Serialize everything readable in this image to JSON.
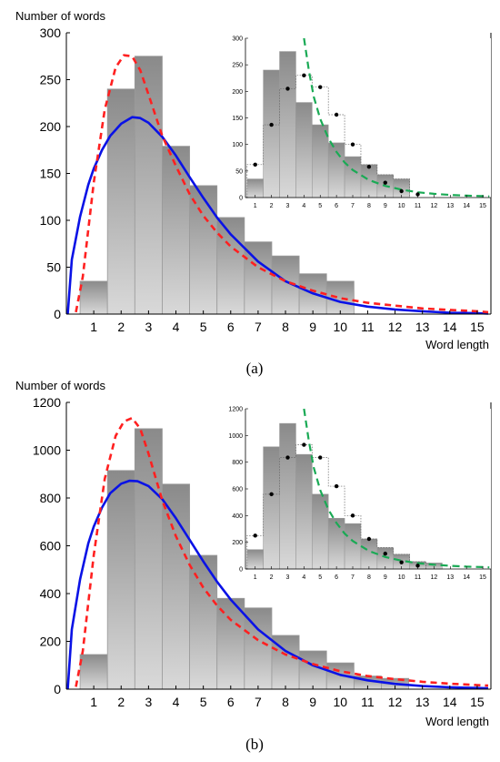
{
  "colors": {
    "bar_top": "#8a8a8a",
    "bar_bottom": "#d9d9d9",
    "bar_edge": "#9a9a9a",
    "solid_curve": "#0a12e6",
    "dashed_curve": "#ff2020",
    "inset_curve": "#1aaa55",
    "points": "#000000"
  },
  "chart_data": [
    {
      "id": "a",
      "type": "bar",
      "caption": "(a)",
      "ylabel": "Number of words",
      "xlabel": "Word length",
      "xlim": [
        0,
        15.5
      ],
      "ylim": [
        0,
        300
      ],
      "yticks": [
        0,
        50,
        100,
        150,
        200,
        250,
        300
      ],
      "xticks": [
        1,
        2,
        3,
        4,
        5,
        6,
        7,
        8,
        9,
        10,
        11,
        12,
        13,
        14,
        15
      ],
      "categories": [
        1,
        2,
        3,
        4,
        5,
        6,
        7,
        8,
        9,
        10,
        11,
        12,
        13,
        14,
        15
      ],
      "values": [
        35,
        240,
        275,
        179,
        137,
        103,
        77,
        62,
        43,
        35,
        0,
        0,
        0,
        0,
        0
      ],
      "curves": [
        {
          "style": "solid",
          "x": [
            0.05,
            0.2,
            0.5,
            0.8,
            1.0,
            1.3,
            1.6,
            2.0,
            2.4,
            2.7,
            3.0,
            3.5,
            4.0,
            4.5,
            5.0,
            5.5,
            6.0,
            7.0,
            8.0,
            9.0,
            10.0,
            11.0,
            12.0,
            13.0,
            14.0,
            15.0,
            15.4
          ],
          "y": [
            0,
            58,
            104,
            138,
            155,
            175,
            190,
            203,
            210,
            209,
            204,
            189,
            169,
            146,
            124,
            103,
            85,
            56,
            35,
            22,
            13,
            8,
            5,
            3,
            1.5,
            1,
            0.5
          ]
        },
        {
          "style": "dashed",
          "x": [
            0.35,
            0.6,
            1.0,
            1.4,
            1.8,
            2.1,
            2.4,
            2.7,
            3.0,
            3.5,
            4.0,
            4.5,
            5.0,
            5.5,
            6.0,
            7.0,
            8.0,
            9.0,
            10.0,
            11.0,
            12.0,
            13.0,
            14.0,
            15.0,
            15.4
          ],
          "y": [
            2,
            40,
            140,
            218,
            263,
            276,
            275,
            260,
            234,
            190,
            158,
            128,
            105,
            87,
            72,
            50,
            35,
            25,
            17,
            12,
            9,
            6,
            4.5,
            3,
            2
          ]
        }
      ],
      "inset": {
        "xlim": [
          0.4,
          15.5
        ],
        "ylim": [
          0,
          300
        ],
        "yticks": [
          0,
          50,
          100,
          150,
          200,
          250,
          300
        ],
        "xticks": [
          1,
          2,
          3,
          4,
          5,
          6,
          7,
          8,
          9,
          10,
          11,
          12,
          13,
          14,
          15
        ],
        "values": [
          35,
          240,
          275,
          179,
          137,
          103,
          77,
          62,
          43,
          35,
          0,
          0,
          0,
          0,
          0
        ],
        "outline": [
          62,
          137,
          205,
          230,
          208,
          156,
          100,
          62,
          43,
          35
        ],
        "points": [
          [
            1,
            62
          ],
          [
            2,
            137
          ],
          [
            3,
            205
          ],
          [
            4,
            230
          ],
          [
            5,
            208
          ],
          [
            6,
            156
          ],
          [
            7,
            100
          ],
          [
            8,
            58
          ],
          [
            9,
            28
          ],
          [
            10,
            12
          ],
          [
            11,
            6
          ]
        ],
        "curve": {
          "style": "dashed",
          "x": [
            4.0,
            4.3,
            4.6,
            5.0,
            5.5,
            6.0,
            6.5,
            7.0,
            8.0,
            9.0,
            10.0,
            11.0,
            12.0,
            13.0,
            14.0,
            15.0,
            15.4
          ],
          "y": [
            300,
            240,
            190,
            148,
            112,
            86,
            66,
            52,
            33,
            22,
            15,
            10,
            7,
            5,
            3.6,
            2.7,
            2.3
          ]
        }
      }
    },
    {
      "id": "b",
      "type": "bar",
      "caption": "(b)",
      "ylabel": "Number of words",
      "xlabel": "Word length",
      "xlim": [
        0,
        15.5
      ],
      "ylim": [
        0,
        1200
      ],
      "yticks": [
        0,
        200,
        400,
        600,
        800,
        1000,
        1200
      ],
      "xticks": [
        1,
        2,
        3,
        4,
        5,
        6,
        7,
        8,
        9,
        10,
        11,
        12,
        13,
        14,
        15
      ],
      "categories": [
        1,
        2,
        3,
        4,
        5,
        6,
        7,
        8,
        9,
        10,
        11,
        12,
        13,
        14,
        15
      ],
      "values": [
        145,
        915,
        1090,
        858,
        560,
        380,
        340,
        225,
        160,
        110,
        55,
        45,
        0,
        0,
        0
      ],
      "curves": [
        {
          "style": "solid",
          "x": [
            0.05,
            0.2,
            0.5,
            0.8,
            1.0,
            1.3,
            1.6,
            2.0,
            2.3,
            2.6,
            3.0,
            3.5,
            4.0,
            4.5,
            5.0,
            5.5,
            6.0,
            7.0,
            8.0,
            9.0,
            10.0,
            11.0,
            12.0,
            13.0,
            14.0,
            15.0,
            15.4
          ],
          "y": [
            0,
            250,
            460,
            610,
            680,
            760,
            820,
            860,
            872,
            870,
            850,
            795,
            715,
            625,
            535,
            450,
            375,
            250,
            160,
            100,
            60,
            37,
            22,
            13,
            8,
            5,
            4
          ]
        },
        {
          "style": "dashed",
          "x": [
            0.35,
            0.6,
            1.0,
            1.4,
            1.8,
            2.1,
            2.4,
            2.7,
            3.0,
            3.5,
            4.0,
            4.5,
            5.0,
            5.5,
            6.0,
            7.0,
            8.0,
            9.0,
            10.0,
            11.0,
            12.0,
            13.0,
            14.0,
            15.0,
            15.4
          ],
          "y": [
            10,
            160,
            560,
            880,
            1060,
            1120,
            1135,
            1090,
            985,
            790,
            640,
            520,
            425,
            350,
            290,
            205,
            145,
            105,
            75,
            55,
            42,
            31,
            23,
            17,
            15
          ]
        }
      ],
      "inset": {
        "xlim": [
          0.4,
          15.5
        ],
        "ylim": [
          0,
          1200
        ],
        "yticks": [
          0,
          200,
          400,
          600,
          800,
          1000,
          1200
        ],
        "xticks": [
          1,
          2,
          3,
          4,
          5,
          6,
          7,
          8,
          9,
          10,
          11,
          12,
          13,
          14,
          15
        ],
        "values": [
          145,
          915,
          1090,
          858,
          560,
          380,
          340,
          225,
          160,
          110,
          55,
          45,
          0,
          0,
          0
        ],
        "outline": [
          250,
          560,
          835,
          930,
          835,
          620,
          400,
          225,
          160,
          110,
          55
        ],
        "points": [
          [
            1,
            250
          ],
          [
            2,
            560
          ],
          [
            3,
            835
          ],
          [
            4,
            930
          ],
          [
            5,
            835
          ],
          [
            6,
            620
          ],
          [
            7,
            400
          ],
          [
            8,
            225
          ],
          [
            9,
            115
          ],
          [
            10,
            50
          ],
          [
            11,
            25
          ]
        ],
        "curve": {
          "style": "dashed",
          "x": [
            4.0,
            4.3,
            4.6,
            5.0,
            5.5,
            6.0,
            6.5,
            7.0,
            8.0,
            9.0,
            10.0,
            11.0,
            12.0,
            13.0,
            14.0,
            15.0,
            15.4
          ],
          "y": [
            1200,
            960,
            760,
            590,
            445,
            345,
            265,
            210,
            135,
            90,
            62,
            44,
            32,
            24,
            18,
            14,
            12
          ]
        }
      }
    }
  ]
}
